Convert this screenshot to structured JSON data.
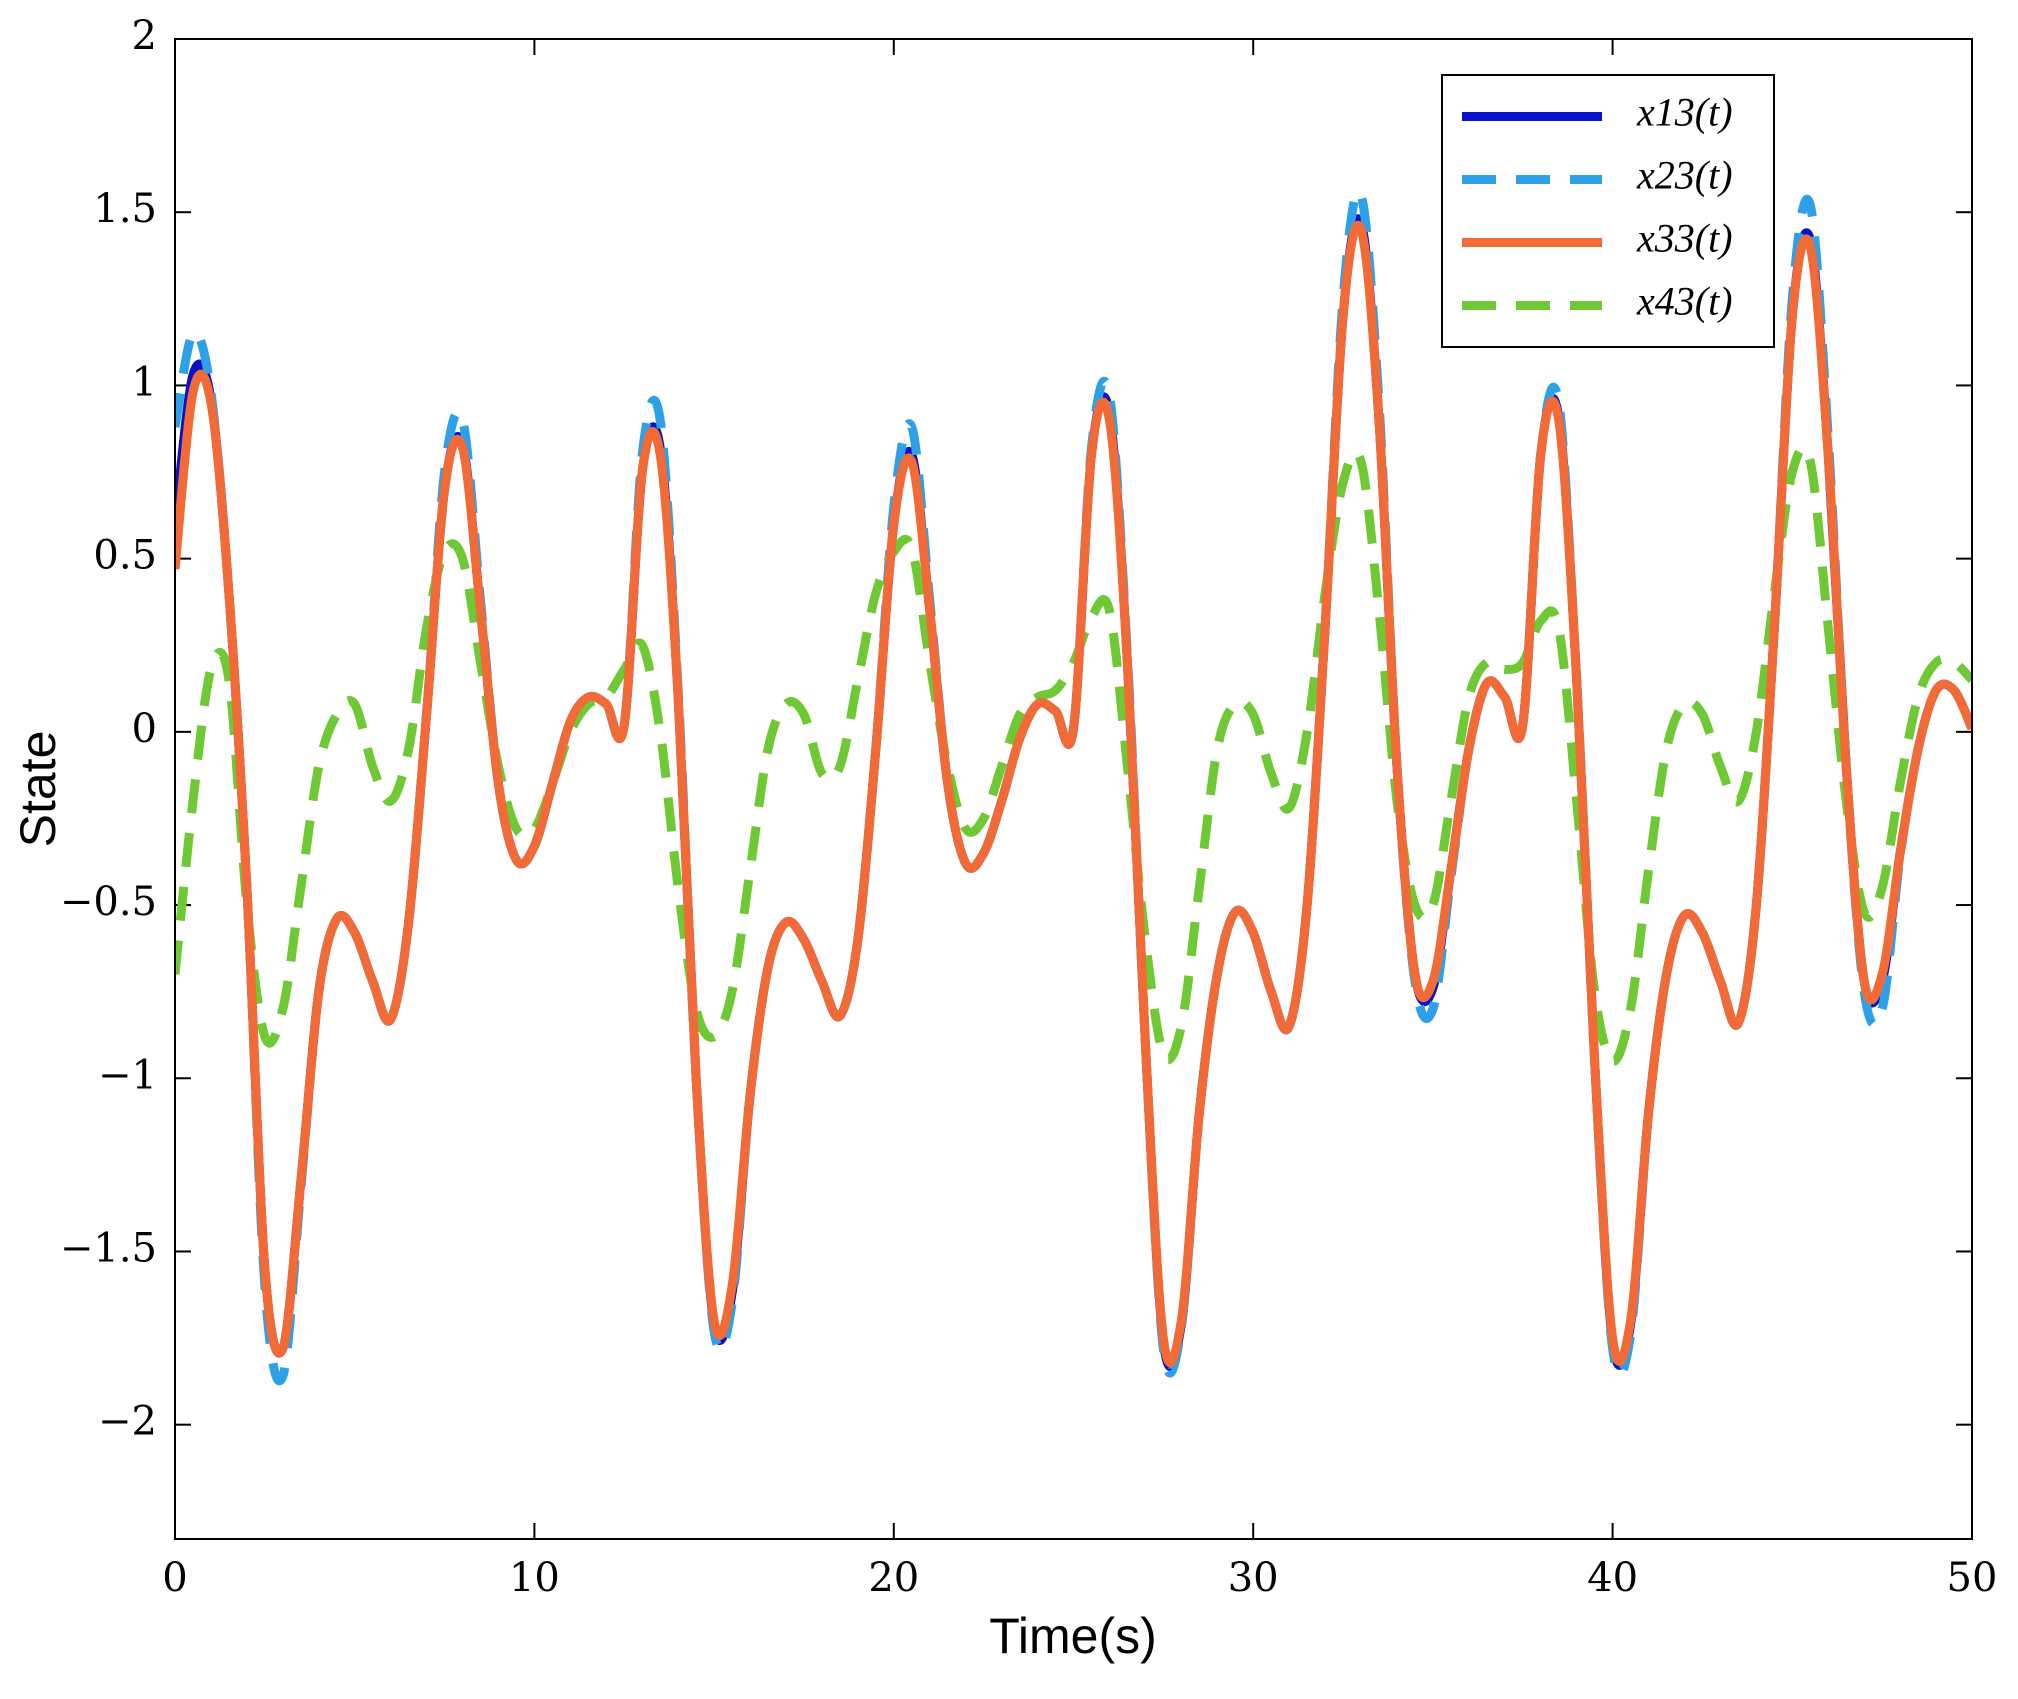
{
  "chart_data": {
    "type": "line",
    "xlabel": "Time(s)",
    "ylabel": "State",
    "x": [
      0,
      0.5,
      1,
      1.5,
      2,
      2.5,
      3,
      3.5,
      4,
      4.5,
      5,
      5.5,
      6,
      6.5,
      7,
      7.5,
      8,
      8.5,
      9,
      9.5,
      10,
      10.5,
      11,
      11.5,
      12,
      12.5,
      13,
      13.5,
      14,
      14.5,
      15,
      15.5,
      16,
      16.5,
      17,
      17.5,
      18,
      18.5,
      19,
      19.5,
      20,
      20.5,
      21,
      21.5,
      22,
      22.5,
      23,
      23.5,
      24,
      24.5,
      25,
      25.5,
      26,
      26.5,
      27,
      27.5,
      28,
      28.5,
      29,
      29.5,
      30,
      30.5,
      31,
      31.5,
      32,
      32.5,
      33,
      33.5,
      34,
      34.5,
      35,
      35.5,
      36,
      36.5,
      37,
      37.5,
      38,
      38.5,
      39,
      39.5,
      40,
      40.5,
      41,
      41.5,
      42,
      42.5,
      43,
      43.5,
      44,
      44.5,
      45,
      45.5,
      46,
      46.5,
      47,
      47.5,
      48,
      48.5,
      49,
      49.5,
      50
    ],
    "series": [
      {
        "name": "x13(t)",
        "color": "#0a12c8",
        "dash": false,
        "values": [
          0.6,
          1.03,
          0.96,
          0.4,
          -0.45,
          -1.55,
          -1.78,
          -1.3,
          -0.75,
          -0.54,
          -0.58,
          -0.72,
          -0.83,
          -0.55,
          0.05,
          0.7,
          0.83,
          0.35,
          -0.15,
          -0.37,
          -0.33,
          -0.15,
          0.03,
          0.1,
          0.08,
          0.02,
          0.75,
          0.82,
          0.1,
          -1.0,
          -1.71,
          -1.62,
          -1.05,
          -0.68,
          -0.55,
          -0.6,
          -0.72,
          -0.82,
          -0.6,
          -0.05,
          0.6,
          0.8,
          0.35,
          -0.15,
          -0.38,
          -0.35,
          -0.2,
          -0.02,
          0.08,
          0.06,
          0.01,
          0.8,
          0.92,
          0.2,
          -0.9,
          -1.76,
          -1.71,
          -1.1,
          -0.7,
          -0.52,
          -0.58,
          -0.75,
          -0.85,
          -0.5,
          0.3,
          1.2,
          1.47,
          0.9,
          -0.1,
          -0.7,
          -0.74,
          -0.4,
          -0.05,
          0.14,
          0.1,
          0.02,
          0.8,
          0.91,
          0.15,
          -0.95,
          -1.76,
          -1.71,
          -1.1,
          -0.7,
          -0.53,
          -0.58,
          -0.72,
          -0.84,
          -0.5,
          0.3,
          1.2,
          1.42,
          0.8,
          -0.1,
          -0.72,
          -0.72,
          -0.35,
          -0.05,
          0.12,
          0.12,
          0.01
        ]
      },
      {
        "name": "x23(t)",
        "color": "#2ea0e8",
        "dash": true,
        "values": [
          0.88,
          1.15,
          0.98,
          0.4,
          -0.45,
          -1.6,
          -1.86,
          -1.32,
          -0.75,
          -0.54,
          -0.58,
          -0.72,
          -0.83,
          -0.55,
          0.05,
          0.75,
          0.9,
          0.38,
          -0.15,
          -0.37,
          -0.33,
          -0.15,
          0.03,
          0.1,
          0.08,
          0.02,
          0.8,
          0.9,
          0.12,
          -1.0,
          -1.73,
          -1.65,
          -1.05,
          -0.68,
          -0.55,
          -0.6,
          -0.72,
          -0.82,
          -0.6,
          -0.05,
          0.65,
          0.88,
          0.38,
          -0.15,
          -0.38,
          -0.35,
          -0.2,
          -0.02,
          0.08,
          0.06,
          0.01,
          0.82,
          0.97,
          0.22,
          -0.9,
          -1.78,
          -1.72,
          -1.1,
          -0.7,
          -0.52,
          -0.58,
          -0.75,
          -0.85,
          -0.5,
          0.3,
          1.25,
          1.55,
          0.95,
          -0.1,
          -0.72,
          -0.8,
          -0.42,
          -0.05,
          0.14,
          0.1,
          0.02,
          0.8,
          0.95,
          0.15,
          -0.95,
          -1.78,
          -1.74,
          -1.1,
          -0.7,
          -0.53,
          -0.58,
          -0.72,
          -0.84,
          -0.5,
          0.3,
          1.25,
          1.52,
          0.85,
          -0.1,
          -0.75,
          -0.8,
          -0.36,
          -0.05,
          0.12,
          0.12,
          0.01
        ]
      },
      {
        "name": "x33(t)",
        "color": "#f26b36",
        "dash": false,
        "values": [
          0.47,
          0.98,
          0.95,
          0.4,
          -0.45,
          -1.55,
          -1.78,
          -1.3,
          -0.75,
          -0.54,
          -0.58,
          -0.72,
          -0.83,
          -0.55,
          0.05,
          0.7,
          0.82,
          0.35,
          -0.15,
          -0.37,
          -0.33,
          -0.15,
          0.03,
          0.1,
          0.08,
          0.02,
          0.75,
          0.8,
          0.1,
          -1.0,
          -1.7,
          -1.6,
          -1.05,
          -0.68,
          -0.55,
          -0.6,
          -0.72,
          -0.82,
          -0.6,
          -0.05,
          0.6,
          0.78,
          0.35,
          -0.15,
          -0.38,
          -0.35,
          -0.2,
          -0.02,
          0.08,
          0.06,
          0.01,
          0.8,
          0.9,
          0.2,
          -0.9,
          -1.75,
          -1.7,
          -1.1,
          -0.7,
          -0.52,
          -0.58,
          -0.75,
          -0.85,
          -0.5,
          0.3,
          1.2,
          1.45,
          0.9,
          -0.1,
          -0.7,
          -0.72,
          -0.4,
          -0.05,
          0.14,
          0.1,
          0.02,
          0.8,
          0.9,
          0.15,
          -0.95,
          -1.75,
          -1.7,
          -1.1,
          -0.7,
          -0.53,
          -0.58,
          -0.72,
          -0.84,
          -0.5,
          0.3,
          1.2,
          1.4,
          0.8,
          -0.1,
          -0.72,
          -0.7,
          -0.35,
          -0.05,
          0.12,
          0.12,
          0.01
        ]
      },
      {
        "name": "x43(t)",
        "color": "#6ec934",
        "dash": true,
        "values": [
          -0.7,
          -0.2,
          0.18,
          0.15,
          -0.5,
          -0.88,
          -0.8,
          -0.45,
          -0.1,
          0.05,
          0.08,
          -0.1,
          -0.2,
          -0.05,
          0.3,
          0.52,
          0.5,
          0.2,
          -0.1,
          -0.28,
          -0.28,
          -0.15,
          0.0,
          0.08,
          0.1,
          0.18,
          0.25,
          0.0,
          -0.45,
          -0.8,
          -0.88,
          -0.75,
          -0.4,
          -0.05,
          0.08,
          0.05,
          -0.12,
          -0.1,
          0.15,
          0.4,
          0.52,
          0.53,
          0.2,
          -0.1,
          -0.28,
          -0.25,
          -0.1,
          0.05,
          0.1,
          0.12,
          0.2,
          0.33,
          0.35,
          -0.1,
          -0.6,
          -0.93,
          -0.85,
          -0.45,
          -0.05,
          0.08,
          0.05,
          -0.12,
          -0.22,
          0.0,
          0.4,
          0.72,
          0.78,
          0.35,
          -0.2,
          -0.5,
          -0.5,
          -0.2,
          0.1,
          0.2,
          0.18,
          0.2,
          0.32,
          0.3,
          -0.2,
          -0.75,
          -0.95,
          -0.8,
          -0.4,
          -0.05,
          0.08,
          0.05,
          -0.1,
          -0.2,
          0.0,
          0.4,
          0.75,
          0.78,
          0.3,
          -0.2,
          -0.52,
          -0.45,
          -0.15,
          0.1,
          0.2,
          0.2,
          0.15
        ]
      }
    ],
    "xlim": [
      0,
      50
    ],
    "xticks": [
      0,
      10,
      20,
      30,
      40,
      50
    ],
    "ylim": [
      -2.33,
      2
    ],
    "yticks": [
      {
        "value": -2,
        "label": "−2"
      },
      {
        "value": -1.5,
        "label": "−1.5"
      },
      {
        "value": -1,
        "label": "−1"
      },
      {
        "value": -0.5,
        "label": "−0.5"
      },
      0,
      0.5,
      1,
      1.5,
      2
    ],
    "legend": "upper right"
  }
}
